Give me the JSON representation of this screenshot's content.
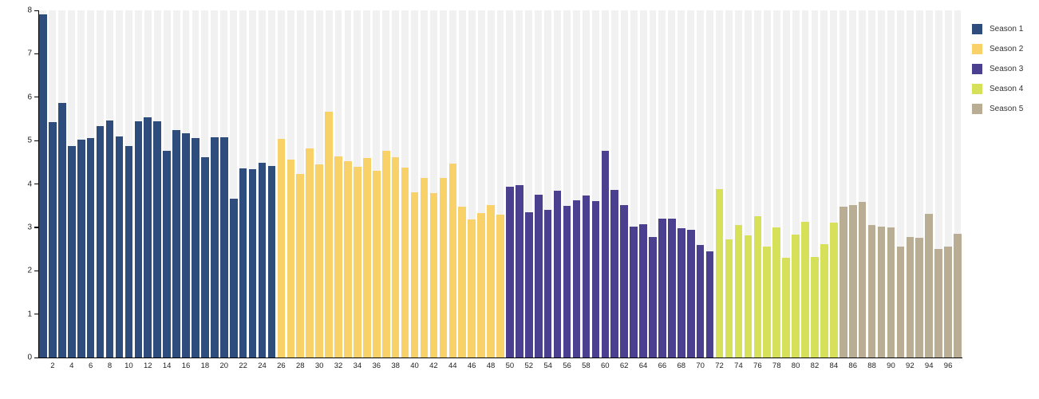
{
  "colors": {
    "background": "#ffffff",
    "band": "#f1f1f1",
    "axis": "#000000",
    "tick_label": "#222222"
  },
  "chart_data": {
    "type": "bar",
    "title": "",
    "xlabel": "",
    "ylabel": "",
    "ylim": [
      0,
      8
    ],
    "yticks": [
      0,
      1,
      2,
      3,
      4,
      5,
      6,
      7,
      8
    ],
    "xticks": [
      2,
      4,
      6,
      8,
      10,
      12,
      14,
      16,
      18,
      20,
      22,
      24,
      26,
      28,
      30,
      32,
      34,
      36,
      38,
      40,
      42,
      44,
      46,
      48,
      50,
      52,
      54,
      56,
      58,
      60,
      62,
      64,
      66,
      68,
      70,
      72,
      74,
      76,
      78,
      80,
      82,
      84,
      86,
      88,
      90,
      92,
      94,
      96
    ],
    "total_episodes": 97,
    "grid": "vertical light-gray band behind every bar slot",
    "legend_position": "top-right outside plot",
    "series": [
      {
        "name": "Season 1",
        "color": "#2e4c7c",
        "first_episode": 1,
        "values": [
          7.9,
          5.42,
          5.87,
          4.88,
          5.02,
          5.06,
          5.33,
          5.47,
          5.1,
          4.88,
          5.45,
          5.54,
          5.45,
          4.76,
          5.25,
          5.17,
          5.06,
          4.62,
          5.08,
          5.08,
          3.66,
          4.36,
          4.34,
          4.49,
          4.42
        ]
      },
      {
        "name": "Season 2",
        "color": "#f8d169",
        "first_episode": 26,
        "values": [
          5.04,
          4.57,
          4.23,
          4.82,
          4.45,
          5.67,
          4.64,
          4.53,
          4.4,
          4.59,
          4.3,
          4.76,
          4.61,
          4.37,
          3.81,
          4.13,
          3.79,
          4.14,
          4.47,
          3.47,
          3.18,
          3.32,
          3.52,
          3.3
        ]
      },
      {
        "name": "Season 3",
        "color": "#4b4090",
        "first_episode": 50,
        "values": [
          3.93,
          3.98,
          3.35,
          3.76,
          3.41,
          3.84,
          3.49,
          3.63,
          3.73,
          3.61,
          4.77,
          3.87,
          3.51,
          3.01,
          3.07,
          2.77,
          3.2,
          3.2,
          2.98,
          2.95,
          2.6,
          2.44
        ]
      },
      {
        "name": "Season 4",
        "color": "#d6e058",
        "first_episode": 72,
        "values": [
          3.88,
          2.73,
          3.06,
          2.81,
          3.25,
          2.55,
          3.0,
          2.3,
          2.84,
          3.13,
          2.32,
          2.61,
          3.1
        ]
      },
      {
        "name": "Season 5",
        "color": "#b9ae93",
        "first_episode": 85,
        "values": [
          3.48,
          3.52,
          3.58,
          3.06,
          3.02,
          3.0,
          2.55,
          2.78,
          2.76,
          3.31,
          2.5,
          2.55,
          2.85
        ]
      }
    ]
  }
}
